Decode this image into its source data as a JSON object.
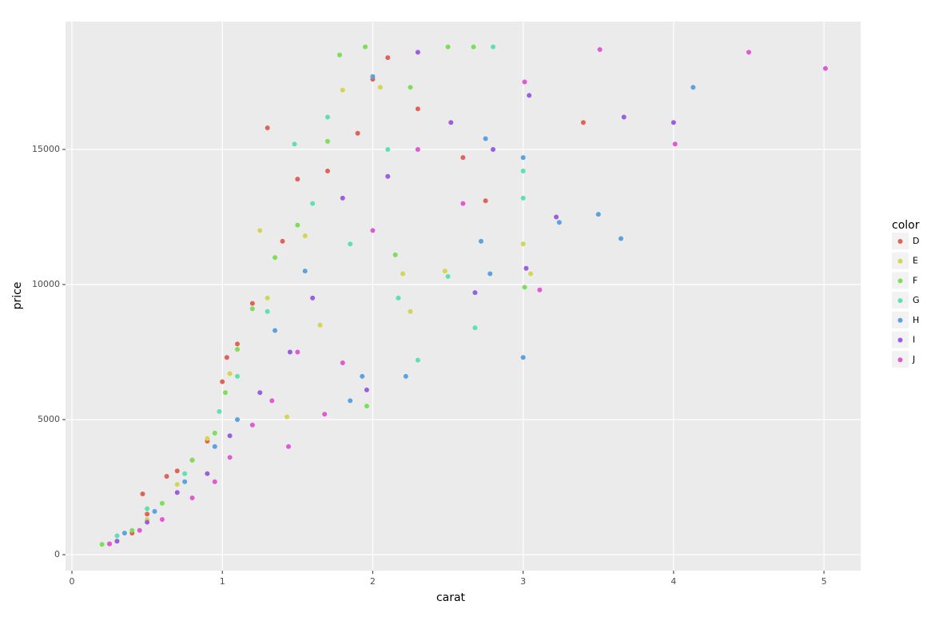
{
  "chart_data": {
    "type": "scatter",
    "x_label": "carat",
    "y_label": "price",
    "legend_title": "color",
    "xlim": [
      -0.0425,
      5.244
    ],
    "ylim": [
      -592,
      19734
    ],
    "xticks": [
      0,
      1,
      2,
      3,
      4,
      5
    ],
    "yticks": [
      0,
      5000,
      10000,
      15000
    ],
    "grid": true,
    "legend_position": "right",
    "series": [
      {
        "name": "D",
        "color": "#e06357",
        "x": [
          0.25,
          0.4,
          0.5,
          0.63,
          0.7,
          0.8,
          0.9,
          1.0,
          1.03,
          1.1,
          1.2,
          1.3,
          1.4,
          1.5,
          1.7,
          1.9,
          2.0,
          2.1,
          2.3,
          2.6,
          2.75,
          3.4,
          0.47
        ],
        "values": [
          400,
          800,
          1500,
          2900,
          3100,
          3500,
          4200,
          6400,
          7300,
          7800,
          9300,
          15800,
          11600,
          13900,
          14200,
          15600,
          17600,
          18400,
          16500,
          14700,
          13100,
          16000,
          2250
        ]
      },
      {
        "name": "E",
        "color": "#d4d455",
        "x": [
          0.3,
          0.5,
          0.7,
          0.9,
          1.05,
          1.25,
          1.43,
          1.55,
          1.65,
          1.8,
          2.05,
          2.2,
          2.25,
          2.48,
          3.0,
          3.05,
          1.3
        ],
        "values": [
          500,
          1300,
          2600,
          4300,
          6700,
          12000,
          5100,
          11800,
          8500,
          17200,
          17300,
          10400,
          9000,
          10500,
          11500,
          10400,
          9500
        ]
      },
      {
        "name": "F",
        "color": "#7ede5a",
        "x": [
          0.2,
          0.4,
          0.6,
          0.8,
          0.95,
          1.02,
          1.1,
          1.2,
          1.35,
          1.5,
          1.7,
          1.78,
          1.95,
          2.15,
          2.5,
          2.67,
          1.96,
          3.01,
          2.25
        ],
        "values": [
          380,
          900,
          1900,
          3500,
          4500,
          6000,
          7600,
          9100,
          11000,
          12200,
          15300,
          18500,
          18800,
          11100,
          18800,
          18800,
          5500,
          9900,
          17300
        ]
      },
      {
        "name": "G",
        "color": "#5ee0b0",
        "x": [
          0.3,
          0.5,
          0.75,
          0.98,
          1.1,
          1.3,
          1.48,
          1.7,
          1.6,
          1.85,
          2.17,
          2.3,
          2.5,
          2.68,
          2.8,
          3.0,
          2.1,
          3.0
        ],
        "values": [
          700,
          1700,
          3000,
          5300,
          6600,
          9000,
          15200,
          16200,
          13000,
          11500,
          9500,
          7200,
          10300,
          8400,
          18800,
          13200,
          15000,
          14200
        ]
      },
      {
        "name": "H",
        "color": "#5aa2e0",
        "x": [
          0.35,
          0.55,
          0.75,
          0.95,
          1.1,
          1.35,
          1.55,
          1.85,
          1.93,
          2.0,
          2.22,
          2.72,
          2.78,
          3.0,
          3.0,
          3.24,
          3.5,
          3.65,
          4.13,
          2.75
        ],
        "values": [
          800,
          1600,
          2700,
          4000,
          5000,
          8300,
          10500,
          5700,
          6600,
          17700,
          6600,
          11600,
          10400,
          7300,
          14700,
          12300,
          12600,
          11700,
          17300,
          15400
        ]
      },
      {
        "name": "I",
        "color": "#9a5ee0",
        "x": [
          0.3,
          0.5,
          0.7,
          0.9,
          1.05,
          1.25,
          1.45,
          1.6,
          1.8,
          1.96,
          2.1,
          2.3,
          2.52,
          2.68,
          3.02,
          3.04,
          3.22,
          3.67,
          4.0,
          2.8
        ],
        "values": [
          500,
          1200,
          2300,
          3000,
          4400,
          6000,
          7500,
          9500,
          13200,
          6100,
          14000,
          18600,
          16000,
          9700,
          10600,
          17000,
          12500,
          16200,
          16000,
          15000
        ]
      },
      {
        "name": "J",
        "color": "#e05ad2",
        "x": [
          0.25,
          0.45,
          0.6,
          0.8,
          0.95,
          1.05,
          1.2,
          1.33,
          1.44,
          1.5,
          1.68,
          1.8,
          2.0,
          2.3,
          2.6,
          3.01,
          3.11,
          3.51,
          4.01,
          4.5,
          5.01
        ],
        "values": [
          400,
          900,
          1300,
          2100,
          2700,
          3600,
          4800,
          5700,
          4000,
          7500,
          5200,
          7100,
          12000,
          15000,
          13000,
          17500,
          9800,
          18700,
          15200,
          18600,
          18000
        ]
      }
    ]
  }
}
